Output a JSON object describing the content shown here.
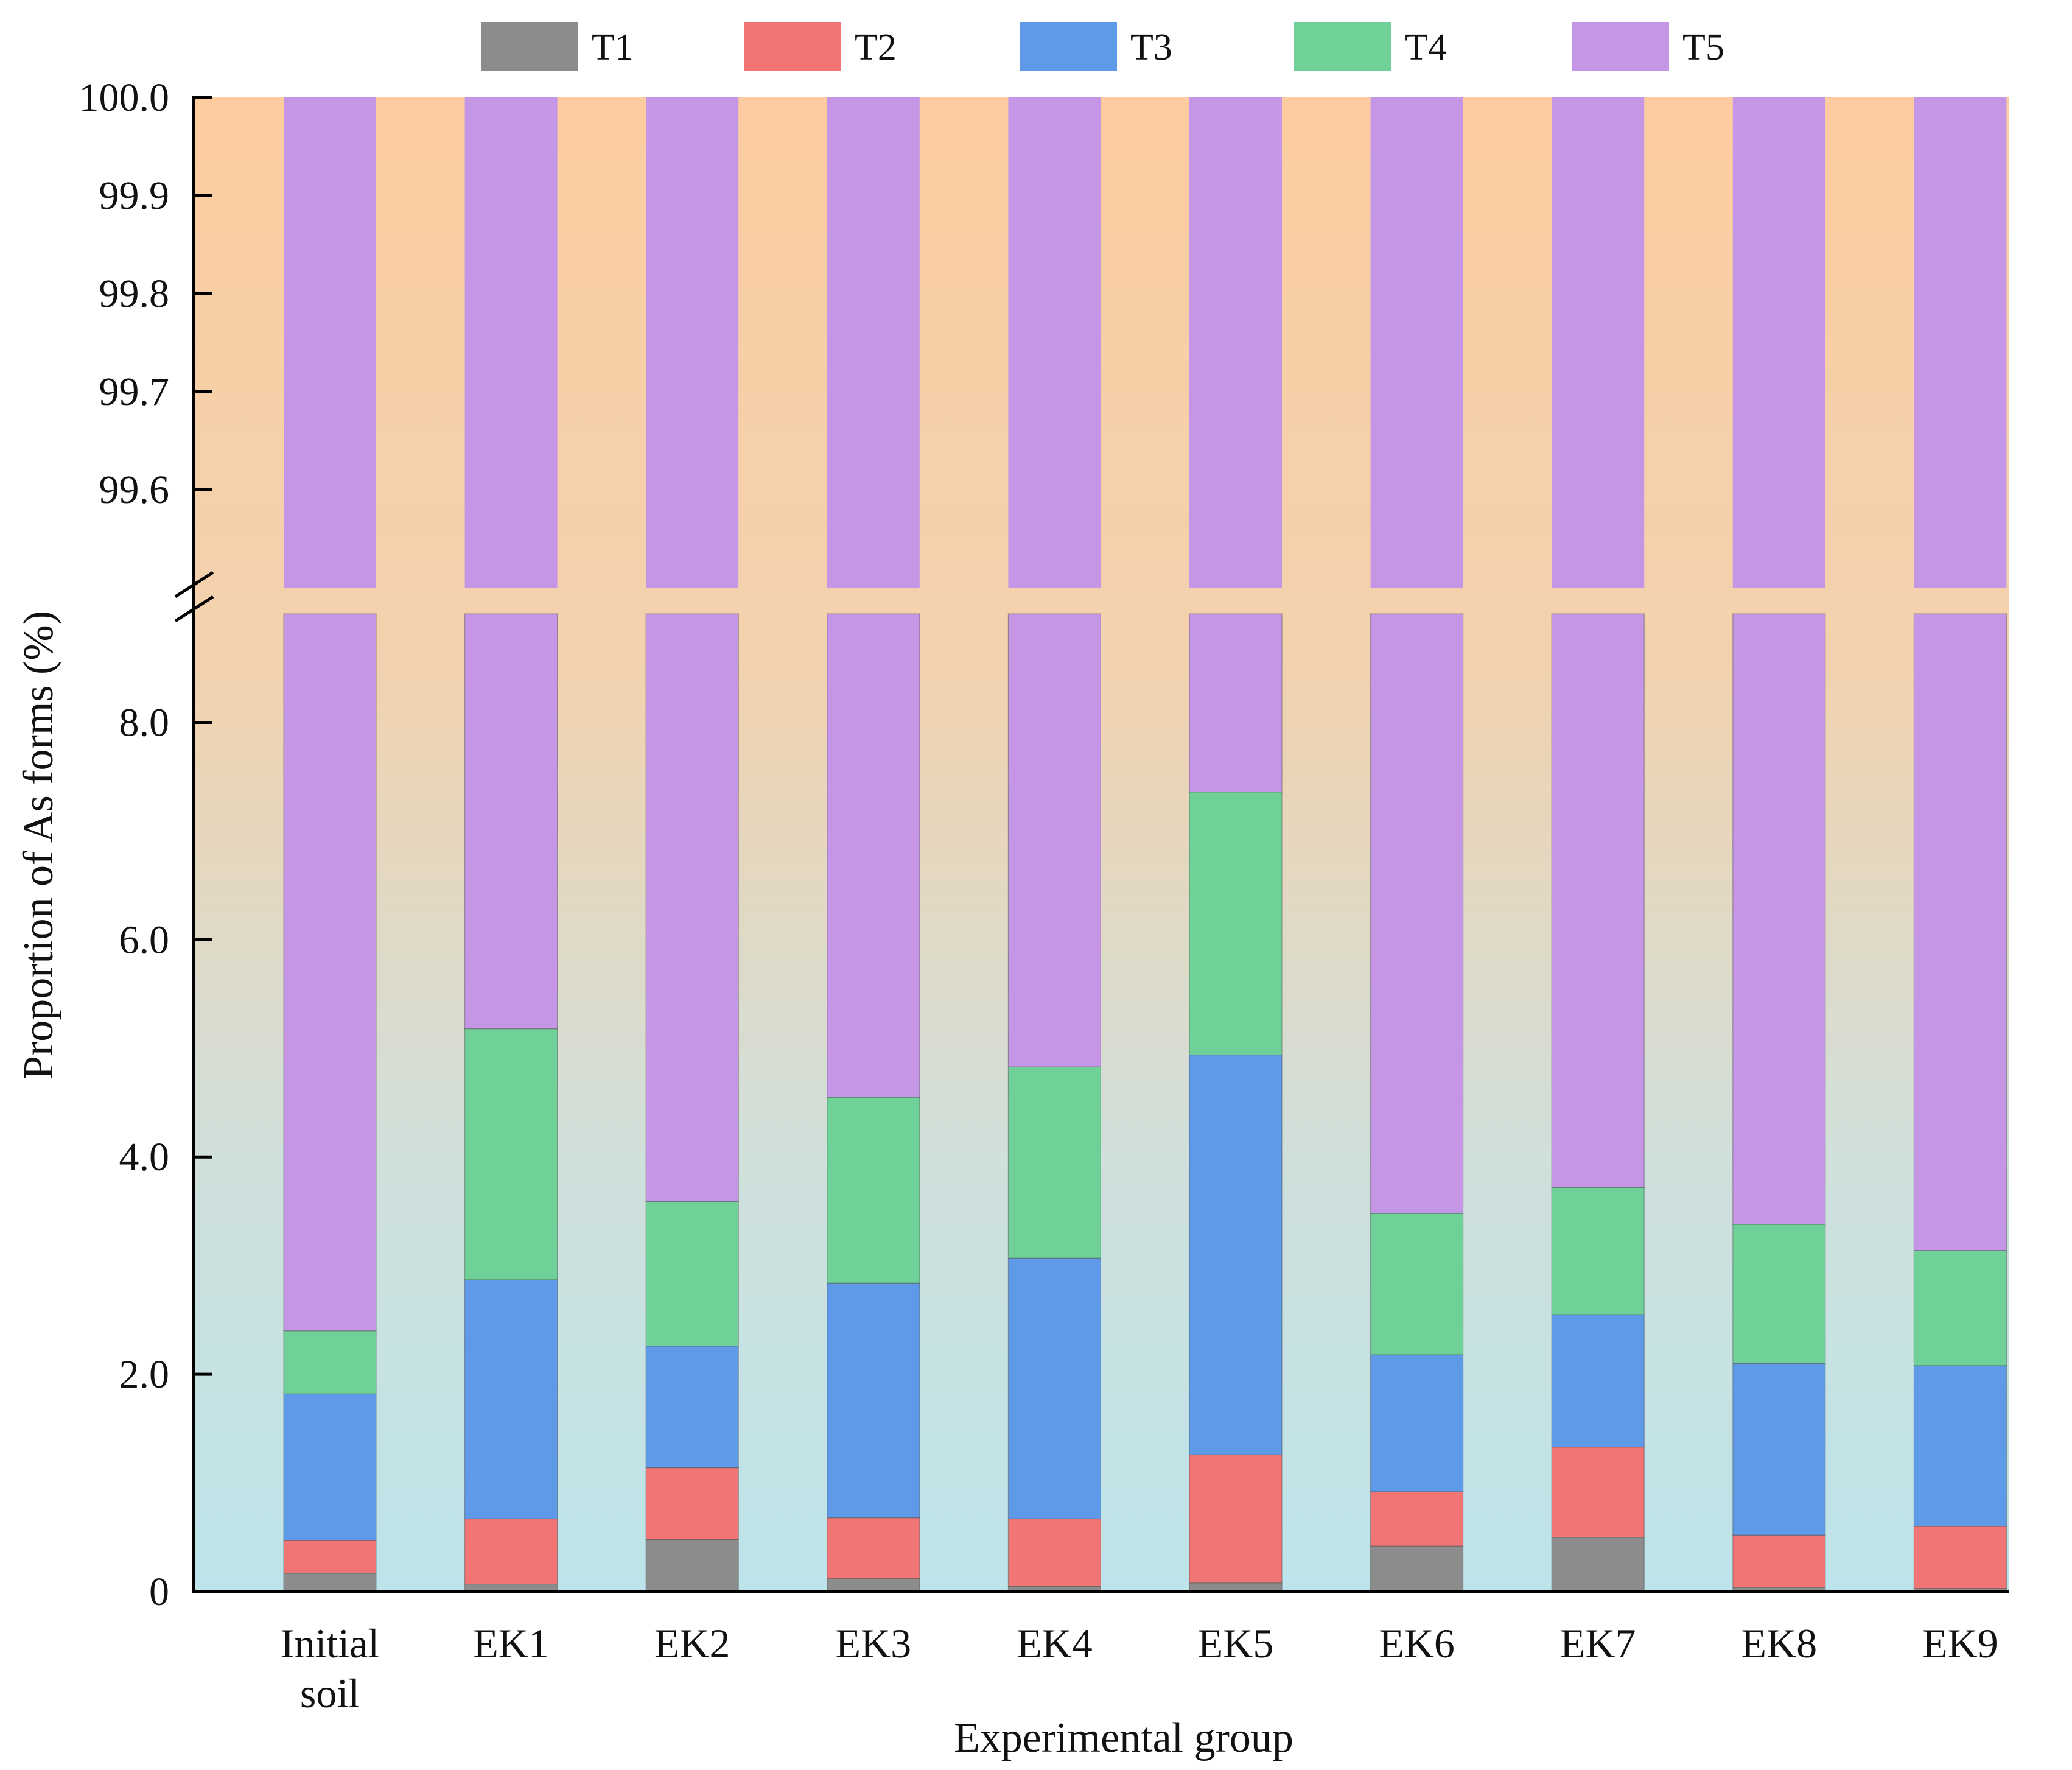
{
  "chart_data": {
    "type": "bar",
    "stacked": true,
    "title": "",
    "xlabel": "Experimental group",
    "ylabel": "Proportion of As forms (%)",
    "categories": [
      "Initial soil",
      "EK1",
      "EK2",
      "EK3",
      "EK4",
      "EK5",
      "EK6",
      "EK7",
      "EK8",
      "EK9"
    ],
    "category_lines": [
      [
        "Initial",
        "soil"
      ],
      [
        "EK1"
      ],
      [
        "EK2"
      ],
      [
        "EK3"
      ],
      [
        "EK4"
      ],
      [
        "EK5"
      ],
      [
        "EK6"
      ],
      [
        "EK7"
      ],
      [
        "EK8"
      ],
      [
        "EK9"
      ]
    ],
    "series": [
      {
        "name": "T1",
        "color": "#8c8c8c",
        "values": [
          0.17,
          0.07,
          0.48,
          0.12,
          0.05,
          0.08,
          0.42,
          0.5,
          0.04,
          0.03
        ]
      },
      {
        "name": "T2",
        "color": "#f27575",
        "values": [
          0.3,
          0.6,
          0.66,
          0.56,
          0.62,
          1.18,
          0.5,
          0.83,
          0.48,
          0.57
        ]
      },
      {
        "name": "T3",
        "color": "#5e9ae8",
        "values": [
          1.35,
          2.2,
          1.12,
          2.16,
          2.4,
          3.68,
          1.26,
          1.22,
          1.58,
          1.48
        ]
      },
      {
        "name": "T4",
        "color": "#70d198",
        "values": [
          0.58,
          2.31,
          1.33,
          1.71,
          1.76,
          2.42,
          1.3,
          1.17,
          1.28,
          1.06
        ]
      },
      {
        "name": "T5",
        "color": "#c596e6",
        "values": [
          97.6,
          94.82,
          96.41,
          95.45,
          95.17,
          92.64,
          96.52,
          96.28,
          96.62,
          96.86
        ]
      }
    ],
    "y_axis_break": {
      "lower_range": [
        0,
        9.0
      ],
      "upper_range": [
        99.5,
        100.0
      ]
    },
    "yticks_lower": [
      "0",
      "2.0",
      "4.0",
      "6.0",
      "8.0"
    ],
    "yticks_lower_values": [
      0,
      2,
      4,
      6,
      8
    ],
    "yticks_upper": [
      "99.6",
      "99.7",
      "99.8",
      "99.9",
      "100.0"
    ],
    "yticks_upper_values": [
      99.6,
      99.7,
      99.8,
      99.9,
      100.0
    ],
    "legend_position": "top",
    "background_gradient": [
      "#fccca0",
      "#bce4ea"
    ],
    "axis_color": "#000000"
  }
}
